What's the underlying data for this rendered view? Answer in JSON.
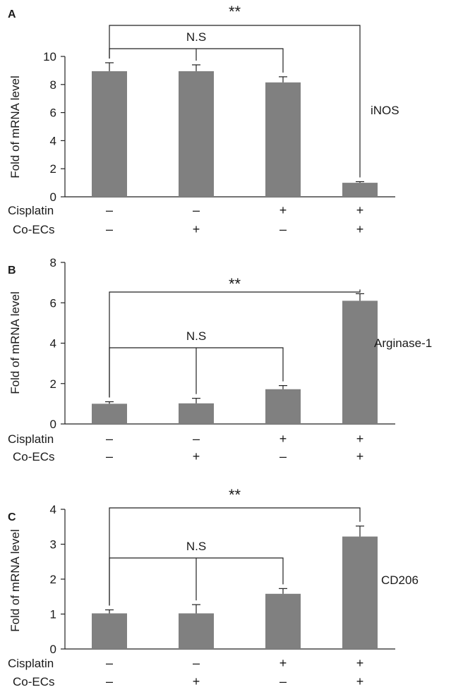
{
  "treatment_labels": {
    "row1": "Cisplatin",
    "row2": "Co-ECs"
  },
  "conditions": [
    {
      "cisplatin": "–",
      "co_ecs": "–"
    },
    {
      "cisplatin": "–",
      "co_ecs": "+"
    },
    {
      "cisplatin": "+",
      "co_ecs": "–"
    },
    {
      "cisplatin": "+",
      "co_ecs": "+"
    }
  ],
  "colors": {
    "bar": "#808080",
    "axis": "#222222",
    "text": "#1a1a1a"
  },
  "chart_data": [
    {
      "type": "bar",
      "panel": "A",
      "gene": "iNOS",
      "ylabel": "Fold of mRNA level",
      "ylim": [
        0,
        10
      ],
      "yticks": [
        0,
        2,
        4,
        6,
        8,
        10
      ],
      "values": [
        8.95,
        8.95,
        8.15,
        1.0
      ],
      "errors": [
        0.6,
        0.45,
        0.4,
        0.08
      ],
      "significance": [
        {
          "label": "**",
          "from": 0,
          "to": 3
        },
        {
          "label": "N.S",
          "from": 0,
          "to": 2
        }
      ]
    },
    {
      "type": "bar",
      "panel": "B",
      "gene": "Arginase-1",
      "ylabel": "Fold of mRNA level",
      "ylim": [
        0,
        8
      ],
      "yticks": [
        0,
        2,
        4,
        6,
        8
      ],
      "values": [
        1.0,
        1.02,
        1.72,
        6.1
      ],
      "errors": [
        0.1,
        0.25,
        0.18,
        0.35
      ],
      "significance": [
        {
          "label": "**",
          "from": 0,
          "to": 3
        },
        {
          "label": "N.S",
          "from": 0,
          "to": 2
        }
      ]
    },
    {
      "type": "bar",
      "panel": "C",
      "gene": "CD206",
      "ylabel": "Fold of mRNA level",
      "ylim": [
        0,
        4
      ],
      "yticks": [
        0,
        1,
        2,
        3,
        4
      ],
      "values": [
        1.02,
        1.02,
        1.58,
        3.22
      ],
      "errors": [
        0.1,
        0.25,
        0.15,
        0.3
      ],
      "significance": [
        {
          "label": "**",
          "from": 0,
          "to": 3
        },
        {
          "label": "N.S",
          "from": 0,
          "to": 2
        }
      ]
    }
  ]
}
